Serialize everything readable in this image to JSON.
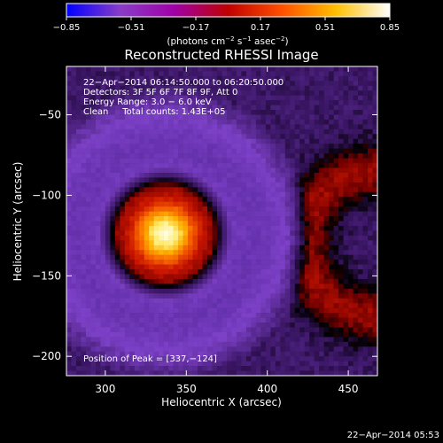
{
  "chart_data": {
    "type": "heatmap",
    "title": "Reconstructed RHESSI Image",
    "colorbar": {
      "min": -0.85,
      "max": 0.85,
      "ticks": [
        "−0.85",
        "−0.51",
        "−0.17",
        "0.17",
        "0.51",
        "0.85"
      ],
      "label_main": "(photons cm",
      "label_exp1": "−2",
      "label_mid": " s",
      "label_exp2": "−1",
      "label_mid2": " asec",
      "label_exp3": "−2",
      "label_end": ")",
      "colors": [
        "#0000ff",
        "#8a3cc8",
        "#a000a8",
        "#c00000",
        "#ff5000",
        "#ffc000",
        "#ffffff"
      ]
    },
    "annotations": [
      "22−Apr−2014 06:14:50.000 to 06:20:50.000",
      "Detectors: 3F 5F 6F 7F 8F 9F, Att 0",
      "Energy Range: 3.0 − 6.0 keV",
      "Clean     Total counts: 1.43E+05"
    ],
    "peak_label": "Position of Peak = [337,−124]",
    "peak": [
      337,
      -124
    ],
    "xlabel": "Heliocentric X (arcsec)",
    "ylabel": "Heliocentric Y (arcsec)",
    "xlim": [
      276,
      468
    ],
    "ylim": [
      -212,
      -20
    ],
    "xticks": [
      300,
      350,
      400,
      450
    ],
    "xtick_labels": [
      "300",
      "350",
      "400",
      "450"
    ],
    "yticks": [
      -50,
      -100,
      -150,
      -200
    ],
    "ytick_labels": [
      "−50",
      "−100",
      "−150",
      "−200"
    ],
    "source": {
      "center": [
        337,
        -124
      ],
      "core_radius": 30,
      "ring_radius": 42,
      "halo_radius": 74,
      "arc_center": [
        468,
        -130
      ],
      "arc_radius": 45
    }
  },
  "footer": {
    "timestamp": "22−Apr−2014 05:53"
  }
}
